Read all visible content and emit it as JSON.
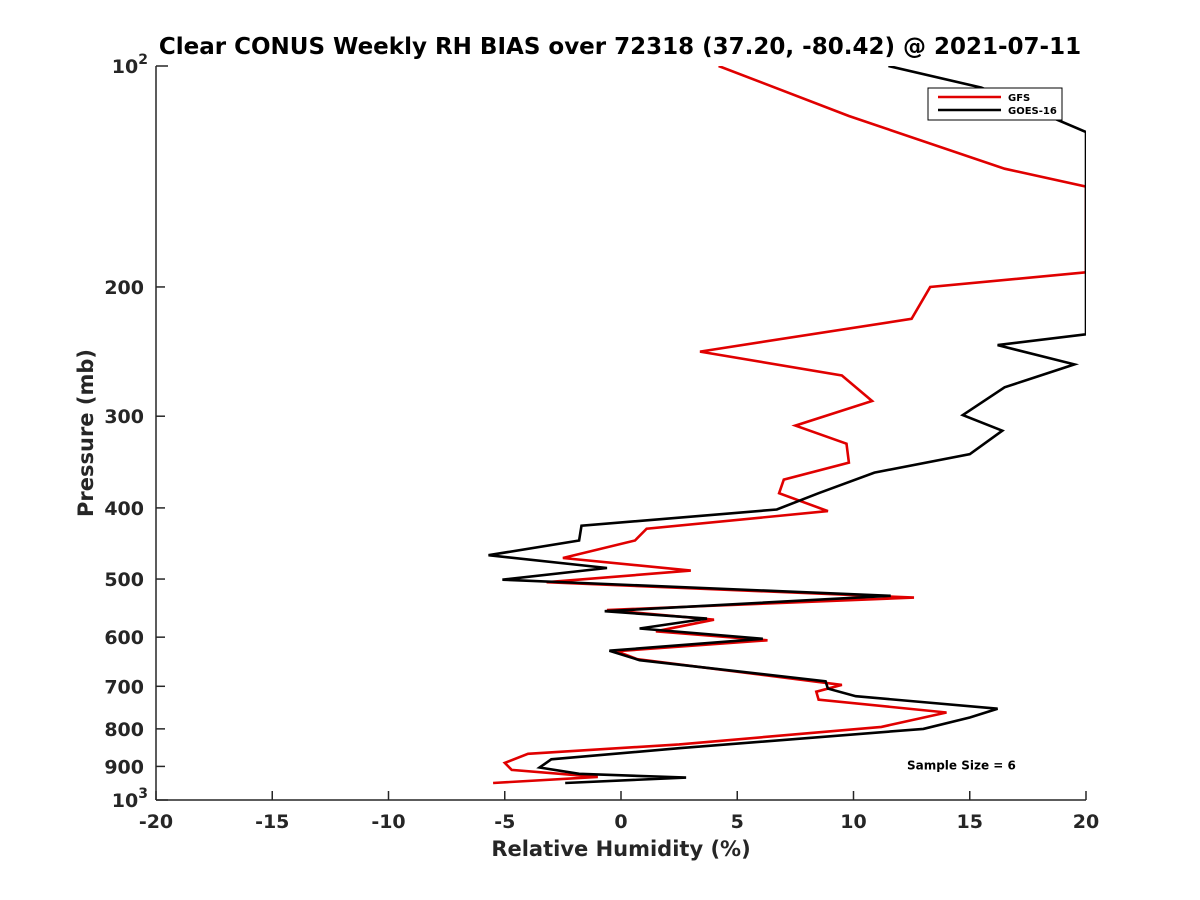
{
  "chart_data": {
    "type": "line",
    "title": "Clear CONUS Weekly RH BIAS over 72318 (37.20, -80.42) @ 2021-07-11",
    "xlabel": "Relative Humidity (%)",
    "ylabel": "Pressure (mb)",
    "xlim": [
      -20,
      20
    ],
    "ylim": [
      100,
      1000
    ],
    "yscale": "log",
    "y_reversed": true,
    "grid": false,
    "legend_position": "top-right",
    "x_ticks": [
      -20,
      -15,
      -10,
      -5,
      0,
      5,
      10,
      15,
      20
    ],
    "x_tick_labels": [
      "-20",
      "-15",
      "-10",
      "-5",
      "0",
      "5",
      "10",
      "15",
      "20"
    ],
    "y_ticks": [
      200,
      300,
      400,
      500,
      600,
      700,
      800,
      900
    ],
    "y_tick_labels": [
      "200",
      "300",
      "400",
      "500",
      "600",
      "700",
      "800",
      "900"
    ],
    "y_decade_labels": [
      {
        "value": 100,
        "base": "10",
        "exp": "2"
      },
      {
        "value": 1000,
        "base": "10",
        "exp": "3"
      }
    ],
    "series": [
      {
        "name": "GFS",
        "color": "#e00000",
        "points": [
          [
            4.2,
            100
          ],
          [
            9.8,
            117
          ],
          [
            16.5,
            138
          ],
          [
            20,
            146
          ],
          [
            20,
            191
          ],
          [
            13.3,
            200
          ],
          [
            12.5,
            221
          ],
          [
            3.4,
            245
          ],
          [
            9.5,
            264
          ],
          [
            10.8,
            286
          ],
          [
            7.5,
            309
          ],
          [
            9.7,
            327
          ],
          [
            9.8,
            347
          ],
          [
            7,
            366
          ],
          [
            6.8,
            382
          ],
          [
            8.9,
            404
          ],
          [
            1.1,
            427
          ],
          [
            0.6,
            443
          ],
          [
            -2.5,
            468
          ],
          [
            3,
            487
          ],
          [
            -3.2,
            505
          ],
          [
            12.6,
            530
          ],
          [
            -0.6,
            551
          ],
          [
            4,
            568
          ],
          [
            1.5,
            589
          ],
          [
            6.3,
            606
          ],
          [
            -0.2,
            627
          ],
          [
            0.7,
            643
          ],
          [
            9.5,
            697
          ],
          [
            8.4,
            712
          ],
          [
            8.5,
            730
          ],
          [
            14,
            760
          ],
          [
            11.2,
            795
          ],
          [
            2.5,
            840
          ],
          [
            -4,
            865
          ],
          [
            -5,
            890
          ],
          [
            -4.7,
            910
          ],
          [
            -1,
            930
          ],
          [
            -5.5,
            948
          ]
        ]
      },
      {
        "name": "GOES-16",
        "color": "#000000",
        "points": [
          [
            11.5,
            100
          ],
          [
            15.5,
            107
          ],
          [
            20,
            123
          ],
          [
            20,
            232
          ],
          [
            16.2,
            240
          ],
          [
            19.5,
            255
          ],
          [
            16.5,
            274
          ],
          [
            14.7,
            299
          ],
          [
            16.4,
            314
          ],
          [
            15,
            338
          ],
          [
            10.9,
            358
          ],
          [
            8.5,
            382
          ],
          [
            6.7,
            402
          ],
          [
            -1.7,
            423
          ],
          [
            -1.8,
            443
          ],
          [
            -5.7,
            464
          ],
          [
            -0.6,
            483
          ],
          [
            -5.1,
            501
          ],
          [
            11.6,
            527
          ],
          [
            -0.7,
            553
          ],
          [
            3.7,
            566
          ],
          [
            0.8,
            584
          ],
          [
            6.1,
            603
          ],
          [
            -0.5,
            626
          ],
          [
            0.8,
            645
          ],
          [
            8.8,
            689
          ],
          [
            8.9,
            705
          ],
          [
            10.1,
            722
          ],
          [
            16.2,
            751
          ],
          [
            15,
            772
          ],
          [
            13,
            800
          ],
          [
            2.5,
            850
          ],
          [
            -3,
            880
          ],
          [
            -3.5,
            903
          ],
          [
            -1.8,
            921
          ],
          [
            2.8,
            932
          ],
          [
            -2.4,
            948
          ]
        ]
      }
    ],
    "annotations": [
      {
        "text": "Sample Size = 6",
        "x": 12.3,
        "y": 898
      }
    ]
  }
}
